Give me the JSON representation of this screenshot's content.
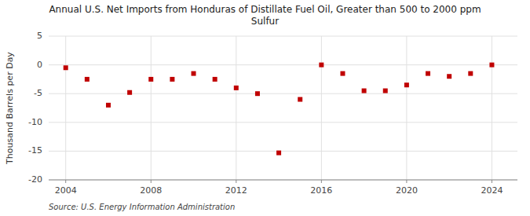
{
  "chart_data": {
    "type": "scatter",
    "title": "Annual U.S. Net Imports from Honduras of Distillate Fuel Oil, Greater than 500 to 2000 ppm\nSulfur",
    "y_label": "Thousand Barrels per Day",
    "source": "Source: U.S. Energy Information Administration",
    "x": [
      2004,
      2005,
      2006,
      2007,
      2008,
      2009,
      2010,
      2011,
      2012,
      2013,
      2014,
      2015,
      2016,
      2017,
      2018,
      2019,
      2020,
      2021,
      2022,
      2023,
      2024
    ],
    "values": [
      -0.5,
      -2.5,
      -7.0,
      -4.8,
      -2.5,
      -2.5,
      -1.5,
      -2.5,
      -4.0,
      -5.0,
      -15.3,
      -6.0,
      0.0,
      -1.5,
      -4.5,
      -4.5,
      -3.5,
      -1.5,
      -2.0,
      -1.5,
      0.0
    ],
    "color": "#c00000",
    "marker": "square",
    "xlim": [
      2003.2,
      2025.2
    ],
    "xticks": [
      2004,
      2008,
      2012,
      2016,
      2020,
      2024
    ],
    "ylim": [
      -20,
      5
    ],
    "yticks": [
      -20,
      -15,
      -10,
      -5,
      0,
      5
    ],
    "grid": true
  }
}
